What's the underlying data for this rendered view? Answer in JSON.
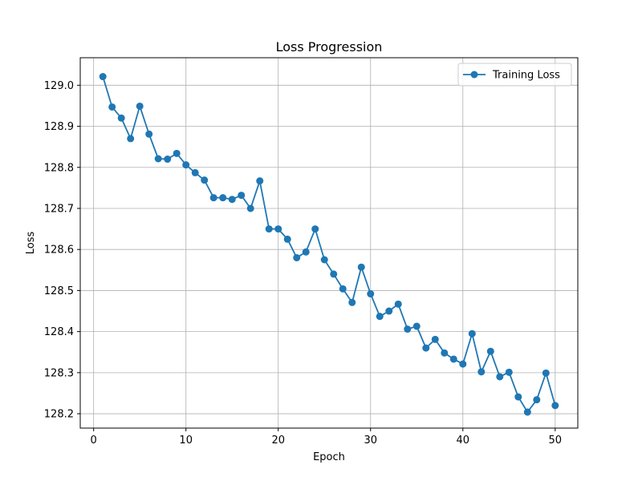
{
  "chart_data": {
    "type": "line",
    "title": "Loss Progression",
    "xlabel": "Epoch",
    "ylabel": "Loss",
    "xlim": [
      -1.45,
      52.45
    ],
    "ylim": [
      128.165,
      129.067
    ],
    "xticks": [
      0,
      10,
      20,
      30,
      40,
      50
    ],
    "yticks": [
      128.2,
      128.3,
      128.4,
      128.5,
      128.6,
      128.7,
      128.8,
      128.9,
      129.0
    ],
    "ytick_labels": [
      "128.2",
      "128.3",
      "128.4",
      "128.5",
      "128.6",
      "128.7",
      "128.8",
      "128.9",
      "129.0"
    ],
    "grid": true,
    "legend_position": "top-right",
    "series": [
      {
        "name": "Training Loss",
        "color": "#1f77b4",
        "marker": "circle",
        "x": [
          1,
          2,
          3,
          4,
          5,
          6,
          7,
          8,
          9,
          10,
          11,
          12,
          13,
          14,
          15,
          16,
          17,
          18,
          19,
          20,
          21,
          22,
          23,
          24,
          25,
          26,
          27,
          28,
          29,
          30,
          31,
          32,
          33,
          34,
          35,
          36,
          37,
          38,
          39,
          40,
          41,
          42,
          43,
          44,
          45,
          46,
          47,
          48,
          49,
          50
        ],
        "y": [
          129.021,
          128.947,
          128.92,
          128.87,
          128.949,
          128.881,
          128.821,
          128.82,
          128.834,
          128.806,
          128.787,
          128.769,
          128.726,
          128.726,
          128.722,
          128.732,
          128.7,
          128.767,
          128.65,
          128.65,
          128.625,
          128.58,
          128.594,
          128.65,
          128.575,
          128.54,
          128.504,
          128.471,
          128.557,
          128.492,
          128.437,
          128.45,
          128.467,
          128.406,
          128.413,
          128.36,
          128.381,
          128.348,
          128.333,
          128.321,
          128.395,
          128.302,
          128.352,
          128.29,
          128.301,
          128.241,
          128.204,
          128.234,
          128.299,
          128.22
        ]
      }
    ]
  }
}
